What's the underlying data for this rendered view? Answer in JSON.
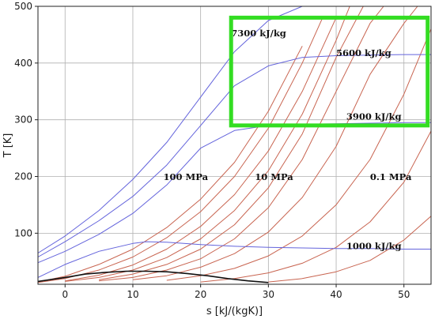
{
  "chart_data": {
    "type": "line",
    "title": "",
    "xlabel": "s [kJ/(kgK)]",
    "ylabel": "T [K]",
    "xlim": [
      -4,
      54
    ],
    "ylim": [
      10,
      500
    ],
    "xticks": [
      0,
      10,
      20,
      30,
      40,
      50
    ],
    "yticks": [
      100,
      200,
      300,
      400,
      500
    ],
    "grid": true,
    "colors": {
      "isobar": "#c86450",
      "isenthalp": "#6464dc",
      "saturation": "#111111",
      "highlight": "#33dd22"
    },
    "series": [
      {
        "group": "isobar",
        "x": [
          -4,
          0,
          5,
          10,
          15,
          20,
          25,
          30,
          35
        ],
        "y": [
          14,
          24,
          45,
          72,
          110,
          160,
          225,
          315,
          430
        ]
      },
      {
        "group": "isobar",
        "x": [
          -4,
          0,
          5,
          10,
          15,
          20,
          25,
          30,
          35,
          38
        ],
        "y": [
          13,
          20,
          35,
          58,
          92,
          138,
          200,
          285,
          400,
          480
        ]
      },
      {
        "group": "isobar",
        "x": [
          0,
          5,
          10,
          15,
          20,
          25,
          30,
          35,
          40
        ],
        "y": [
          16,
          26,
          44,
          72,
          112,
          168,
          245,
          350,
          480
        ]
      },
      {
        "group": "isobar",
        "x": [
          0,
          5,
          10,
          15,
          20,
          25,
          30,
          35,
          40,
          42
        ],
        "y": [
          15,
          22,
          35,
          57,
          90,
          140,
          210,
          310,
          440,
          500
        ]
      },
      {
        "group": "isobar",
        "x": [
          5,
          10,
          15,
          20,
          25,
          30,
          35,
          40,
          44
        ],
        "y": [
          18,
          28,
          45,
          72,
          115,
          180,
          275,
          410,
          500
        ]
      },
      {
        "group": "isobar",
        "x": [
          5,
          10,
          15,
          20,
          25,
          30,
          35,
          40,
          45,
          47
        ],
        "y": [
          16,
          22,
          35,
          55,
          90,
          145,
          230,
          350,
          470,
          500
        ]
      },
      {
        "group": "isobar",
        "x": [
          10,
          15,
          20,
          25,
          30,
          35,
          40,
          45,
          50,
          52
        ],
        "y": [
          18,
          25,
          40,
          64,
          102,
          163,
          253,
          380,
          470,
          500
        ]
      },
      {
        "group": "isobar",
        "x": [
          15,
          20,
          25,
          30,
          35,
          40,
          45,
          50,
          54
        ],
        "y": [
          17,
          25,
          38,
          60,
          95,
          150,
          230,
          345,
          460
        ]
      },
      {
        "group": "isobar",
        "x": [
          20,
          25,
          30,
          35,
          40,
          45,
          50,
          54
        ],
        "y": [
          14,
          20,
          30,
          47,
          75,
          120,
          190,
          280
        ]
      },
      {
        "group": "isobar",
        "x": [
          30,
          35,
          40,
          45,
          50,
          54
        ],
        "y": [
          14,
          20,
          32,
          52,
          88,
          130
        ]
      },
      {
        "group": "isenthalp",
        "x": [
          -4,
          0,
          5,
          10,
          15,
          20,
          25,
          30,
          35
        ],
        "y": [
          65,
          95,
          140,
          195,
          260,
          340,
          420,
          475,
          500
        ]
      },
      {
        "group": "isenthalp",
        "x": [
          -4,
          0,
          5,
          10,
          15,
          20,
          25,
          30,
          35,
          40,
          45,
          50,
          54
        ],
        "y": [
          58,
          85,
          122,
          165,
          220,
          290,
          360,
          395,
          410,
          413,
          414,
          415,
          415
        ]
      },
      {
        "group": "isenthalp",
        "x": [
          -4,
          0,
          5,
          10,
          15,
          20,
          25,
          30,
          35,
          40,
          45,
          50,
          54
        ],
        "y": [
          48,
          68,
          98,
          135,
          185,
          250,
          281,
          290,
          292,
          293,
          294,
          295,
          295
        ]
      },
      {
        "group": "isenthalp",
        "x": [
          -4,
          0,
          5,
          10,
          12,
          15,
          20,
          25,
          30,
          35,
          40,
          45,
          50,
          54
        ],
        "y": [
          22,
          45,
          68,
          82,
          85,
          84,
          80,
          77,
          75,
          74,
          73,
          73,
          72,
          72
        ]
      },
      {
        "group": "saturation",
        "x": [
          -4,
          0,
          3,
          6,
          9,
          12,
          15,
          18,
          21,
          24,
          27,
          30
        ],
        "y": [
          15,
          22,
          28,
          31,
          33,
          33,
          32,
          29,
          25,
          20,
          16,
          13
        ]
      }
    ],
    "annotations": [
      {
        "text": "7300 kJ/kg",
        "x": 24.5,
        "y": 447
      },
      {
        "text": "5600 kJ/kg",
        "x": 40,
        "y": 412
      },
      {
        "text": "3900 kJ/kg",
        "x": 41.5,
        "y": 300
      },
      {
        "text": "1000 kJ/kg",
        "x": 41.5,
        "y": 72
      },
      {
        "text": "100 MPa",
        "x": 14.5,
        "y": 194
      },
      {
        "text": "10 MPa",
        "x": 28,
        "y": 194
      },
      {
        "text": "0.1 MPa",
        "x": 45,
        "y": 194
      }
    ],
    "highlight_box": {
      "x0": 24.5,
      "x1": 53.5,
      "y0": 290,
      "y1": 480
    }
  }
}
